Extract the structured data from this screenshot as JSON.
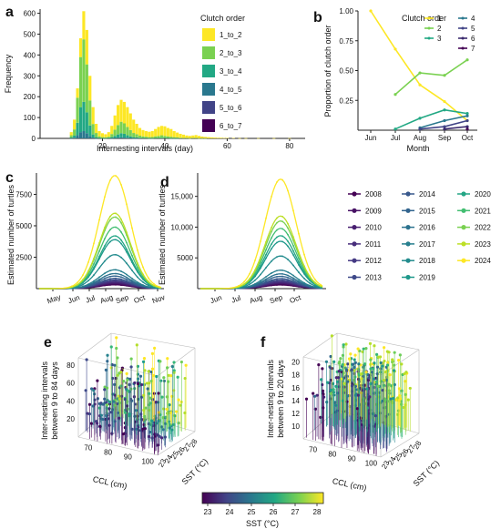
{
  "panel_labels": [
    "a",
    "b",
    "c",
    "d",
    "e",
    "f"
  ],
  "colors": {
    "1_to_2": "#fde725",
    "2_to_3": "#7ad151",
    "3_to_4": "#22a884",
    "4_to_5": "#2a788e",
    "5_to_6": "#414487",
    "6_to_7": "#440154"
  },
  "chart_data": [
    {
      "type": "bar",
      "panel": "a",
      "stacked": true,
      "xlabel": "Internesting intervals (day)",
      "ylabel": "Frequency",
      "xlim": [
        0,
        85
      ],
      "ylim": [
        0,
        620
      ],
      "xticks": [
        20,
        40,
        60,
        80
      ],
      "yticks": [
        0,
        100,
        200,
        300,
        400,
        500,
        600
      ],
      "legend_title": "Clutch order",
      "legend_position": "top-right",
      "series": [
        {
          "name": "1_to_2",
          "color": "#fde725"
        },
        {
          "name": "2_to_3",
          "color": "#7ad151"
        },
        {
          "name": "3_to_4",
          "color": "#22a884"
        },
        {
          "name": "4_to_5",
          "color": "#2a788e"
        },
        {
          "name": "5_to_6",
          "color": "#414487"
        },
        {
          "name": "6_to_7",
          "color": "#440154"
        }
      ],
      "bins": [
        {
          "x": 10,
          "total": 30,
          "g": 10,
          "t": 4,
          "b": 1
        },
        {
          "x": 11,
          "total": 90,
          "g": 30,
          "t": 10,
          "b": 3
        },
        {
          "x": 12,
          "total": 240,
          "g": 120,
          "t": 60,
          "b": 15
        },
        {
          "x": 13,
          "total": 480,
          "g": 240,
          "t": 120,
          "b": 30
        },
        {
          "x": 14,
          "total": 610,
          "g": 300,
          "t": 140,
          "b": 35
        },
        {
          "x": 15,
          "total": 520,
          "g": 230,
          "t": 100,
          "b": 25
        },
        {
          "x": 16,
          "total": 300,
          "g": 120,
          "t": 50,
          "b": 12
        },
        {
          "x": 17,
          "total": 150,
          "g": 50,
          "t": 15,
          "b": 4
        },
        {
          "x": 18,
          "total": 70,
          "g": 20,
          "t": 5,
          "b": 1
        },
        {
          "x": 19,
          "total": 35,
          "g": 8,
          "t": 2,
          "b": 0
        },
        {
          "x": 20,
          "total": 25,
          "g": 5,
          "t": 1,
          "b": 0
        },
        {
          "x": 21,
          "total": 20,
          "g": 4,
          "t": 1,
          "b": 0
        },
        {
          "x": 22,
          "total": 30,
          "g": 6,
          "t": 2,
          "b": 0
        },
        {
          "x": 23,
          "total": 60,
          "g": 15,
          "t": 5,
          "b": 1
        },
        {
          "x": 24,
          "total": 110,
          "g": 30,
          "t": 10,
          "b": 2
        },
        {
          "x": 25,
          "total": 160,
          "g": 45,
          "t": 15,
          "b": 4
        },
        {
          "x": 26,
          "total": 185,
          "g": 55,
          "t": 20,
          "b": 5
        },
        {
          "x": 27,
          "total": 175,
          "g": 50,
          "t": 18,
          "b": 4
        },
        {
          "x": 28,
          "total": 150,
          "g": 40,
          "t": 12,
          "b": 3
        },
        {
          "x": 29,
          "total": 120,
          "g": 30,
          "t": 8,
          "b": 2
        },
        {
          "x": 30,
          "total": 90,
          "g": 20,
          "t": 5,
          "b": 1
        },
        {
          "x": 31,
          "total": 70,
          "g": 15,
          "t": 4,
          "b": 1
        },
        {
          "x": 32,
          "total": 50,
          "g": 10,
          "t": 3,
          "b": 0
        },
        {
          "x": 33,
          "total": 40,
          "g": 8,
          "t": 2,
          "b": 0
        },
        {
          "x": 34,
          "total": 35,
          "g": 6,
          "t": 2,
          "b": 0
        },
        {
          "x": 35,
          "total": 32,
          "g": 5,
          "t": 1,
          "b": 0
        },
        {
          "x": 36,
          "total": 35,
          "g": 6,
          "t": 1,
          "b": 0
        },
        {
          "x": 37,
          "total": 45,
          "g": 8,
          "t": 2,
          "b": 0
        },
        {
          "x": 38,
          "total": 55,
          "g": 10,
          "t": 2,
          "b": 0
        },
        {
          "x": 39,
          "total": 60,
          "g": 12,
          "t": 3,
          "b": 0
        },
        {
          "x": 40,
          "total": 58,
          "g": 10,
          "t": 2,
          "b": 0
        },
        {
          "x": 41,
          "total": 50,
          "g": 8,
          "t": 2,
          "b": 0
        },
        {
          "x": 42,
          "total": 45,
          "g": 7,
          "t": 1,
          "b": 0
        },
        {
          "x": 43,
          "total": 35,
          "g": 5,
          "t": 1,
          "b": 0
        },
        {
          "x": 44,
          "total": 28,
          "g": 4,
          "t": 1,
          "b": 0
        },
        {
          "x": 45,
          "total": 22,
          "g": 3,
          "t": 0,
          "b": 0
        },
        {
          "x": 46,
          "total": 18,
          "g": 2,
          "t": 0,
          "b": 0
        },
        {
          "x": 47,
          "total": 14,
          "g": 2,
          "t": 0,
          "b": 0
        },
        {
          "x": 48,
          "total": 12,
          "g": 1,
          "t": 0,
          "b": 0
        },
        {
          "x": 49,
          "total": 14,
          "g": 2,
          "t": 0,
          "b": 0
        },
        {
          "x": 50,
          "total": 16,
          "g": 2,
          "t": 0,
          "b": 0
        },
        {
          "x": 51,
          "total": 12,
          "g": 1,
          "t": 0,
          "b": 0
        },
        {
          "x": 52,
          "total": 9,
          "g": 1,
          "t": 0,
          "b": 0
        },
        {
          "x": 53,
          "total": 7,
          "g": 1,
          "t": 0,
          "b": 0
        },
        {
          "x": 54,
          "total": 6,
          "g": 0,
          "t": 0,
          "b": 0
        },
        {
          "x": 55,
          "total": 5,
          "g": 0,
          "t": 0,
          "b": 0
        },
        {
          "x": 56,
          "total": 4,
          "g": 0,
          "t": 0,
          "b": 0
        },
        {
          "x": 57,
          "total": 3,
          "g": 0,
          "t": 0,
          "b": 0
        },
        {
          "x": 58,
          "total": 3,
          "g": 0,
          "t": 0,
          "b": 0
        },
        {
          "x": 59,
          "total": 2,
          "g": 0,
          "t": 0,
          "b": 0
        },
        {
          "x": 60,
          "total": 2,
          "g": 0,
          "t": 0,
          "b": 0
        },
        {
          "x": 62,
          "total": 2,
          "g": 0,
          "t": 0,
          "b": 0
        },
        {
          "x": 64,
          "total": 1,
          "g": 0,
          "t": 0,
          "b": 0
        },
        {
          "x": 66,
          "total": 1,
          "g": 0,
          "t": 0,
          "b": 0
        },
        {
          "x": 70,
          "total": 1,
          "g": 0,
          "t": 0,
          "b": 0
        },
        {
          "x": 75,
          "total": 1,
          "g": 0,
          "t": 0,
          "b": 0
        },
        {
          "x": 80,
          "total": 1,
          "g": 0,
          "t": 0,
          "b": 0
        }
      ]
    },
    {
      "type": "line",
      "panel": "b",
      "xlabel": "Month",
      "ylabel": "Proportion of clutch order",
      "categories": [
        "Jun",
        "Jul",
        "Aug",
        "Sep",
        "Oct"
      ],
      "ylim": [
        0,
        1
      ],
      "yticks": [
        0.25,
        0.5,
        0.75,
        1.0
      ],
      "yticklabels": [
        "0.25",
        "0.50",
        "0.75",
        "1.00"
      ],
      "legend_title": "Clutch order",
      "legend_position": "top-right",
      "series": [
        {
          "name": "1",
          "color": "#fde725",
          "values": [
            1.0,
            0.68,
            0.38,
            0.24,
            0.08
          ]
        },
        {
          "name": "2",
          "color": "#7ad151",
          "values": [
            null,
            0.3,
            0.48,
            0.46,
            0.59
          ]
        },
        {
          "name": "3",
          "color": "#22a884",
          "values": [
            null,
            0.01,
            0.1,
            0.17,
            0.14
          ]
        },
        {
          "name": "4",
          "color": "#2a788e",
          "values": [
            null,
            null,
            0.02,
            0.08,
            0.12
          ]
        },
        {
          "name": "5",
          "color": "#414487",
          "values": [
            null,
            null,
            0.01,
            0.03,
            0.08
          ]
        },
        {
          "name": "6",
          "color": "#3b2a6e",
          "values": [
            null,
            null,
            null,
            0.01,
            0.03
          ]
        },
        {
          "name": "7",
          "color": "#440154",
          "values": [
            null,
            null,
            null,
            null,
            0.01
          ]
        }
      ]
    },
    {
      "type": "line",
      "panel": "c",
      "ylabel": "Estimated number of turtles",
      "categories": [
        "May",
        "Jun",
        "Jul",
        "Aug",
        "Sep",
        "Oct",
        "Nov"
      ],
      "ylim": [
        0,
        9200
      ],
      "yticks": [
        2500,
        5000,
        7500
      ],
      "yticklabels": [
        "2500",
        "5000",
        "7500"
      ],
      "peaks": [
        300,
        380,
        450,
        520,
        600,
        700,
        820,
        1000,
        1200,
        1500,
        2700,
        3900,
        4200,
        4900,
        5700,
        6000,
        9000
      ]
    },
    {
      "type": "line",
      "panel": "d",
      "ylabel": "Estimated number of turtles",
      "categories": [
        "Jun",
        "Jul",
        "Aug",
        "Sep",
        "Oct"
      ],
      "ylim": [
        0,
        18800
      ],
      "yticks": [
        5000,
        10000,
        15000
      ],
      "yticklabels": [
        "5000",
        "10,000",
        "15,000"
      ],
      "peaks": [
        600,
        760,
        900,
        1040,
        1200,
        1400,
        1640,
        2000,
        2400,
        3000,
        5300,
        7700,
        8600,
        9800,
        11000,
        11800,
        17800
      ]
    },
    {
      "type": "scatter",
      "panel": "e",
      "style": "3d-stem",
      "xlabel": "CCL (cm)",
      "ylabel": "SST (°C)",
      "zlabel": "Inter-nesting intervals between 9 to 84 days",
      "xticks": [
        "70",
        "80",
        "90",
        "100"
      ],
      "yticks": [
        "23",
        "24",
        "25",
        "26",
        "27",
        "28"
      ],
      "zticks": [
        "20",
        "40",
        "60",
        "80"
      ]
    },
    {
      "type": "scatter",
      "panel": "f",
      "style": "3d-stem",
      "xlabel": "CCL (cm)",
      "ylabel": "SST (°C)",
      "zlabel": "Inter-nesting intervals between 9 to 20 days",
      "xticks": [
        "70",
        "80",
        "90",
        "100"
      ],
      "yticks": [
        "23",
        "24",
        "25",
        "26",
        "27",
        "28"
      ],
      "zticks": [
        "10",
        "12",
        "14",
        "16",
        "18",
        "20"
      ]
    }
  ],
  "year_legend": {
    "items": [
      {
        "year": "2008",
        "color": "#440154"
      },
      {
        "year": "2009",
        "color": "#471164"
      },
      {
        "year": "2010",
        "color": "#481f70"
      },
      {
        "year": "2011",
        "color": "#472d7b"
      },
      {
        "year": "2012",
        "color": "#443983"
      },
      {
        "year": "2013",
        "color": "#3e4989"
      },
      {
        "year": "2014",
        "color": "#38588c"
      },
      {
        "year": "2015",
        "color": "#32648e"
      },
      {
        "year": "2016",
        "color": "#2c728e"
      },
      {
        "year": "2017",
        "color": "#277f8e"
      },
      {
        "year": "2018",
        "color": "#228b8d"
      },
      {
        "year": "2019",
        "color": "#1f988b"
      },
      {
        "year": "2020",
        "color": "#24a685"
      },
      {
        "year": "2021",
        "color": "#42be71"
      },
      {
        "year": "2022",
        "color": "#7ad151"
      },
      {
        "year": "2023",
        "color": "#bddf26"
      },
      {
        "year": "2024",
        "color": "#fde725"
      }
    ]
  },
  "colorbar": {
    "label": "SST (°C)",
    "ticks": [
      "23",
      "24",
      "25",
      "26",
      "27",
      "28"
    ]
  }
}
